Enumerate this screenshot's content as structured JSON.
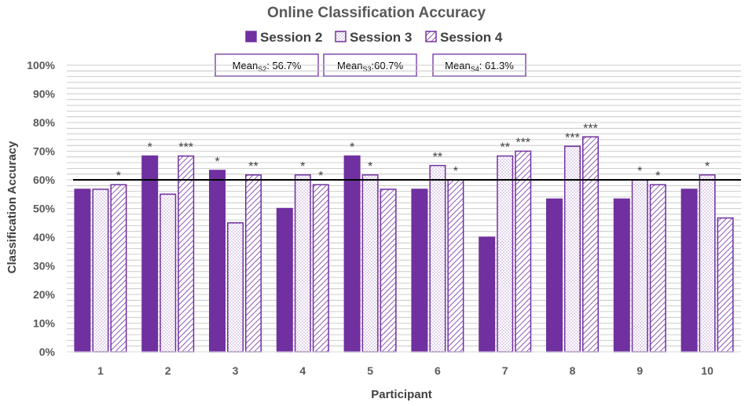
{
  "chart_data": {
    "type": "bar",
    "title": "Online Classification Accuracy",
    "xlabel": "Participant",
    "ylabel": "Classification Accuracy",
    "ylim": [
      0,
      100
    ],
    "ytick_labels": [
      "0%",
      "10%",
      "20%",
      "30%",
      "40%",
      "50%",
      "60%",
      "70%",
      "80%",
      "90%",
      "100%"
    ],
    "grid": true,
    "legend_position": "top-center",
    "categories": [
      "1",
      "2",
      "3",
      "4",
      "5",
      "6",
      "7",
      "8",
      "9",
      "10"
    ],
    "series": [
      {
        "name": "Session 2",
        "style": "solid",
        "values": [
          56.7,
          68.3,
          63.3,
          50.0,
          68.3,
          56.7,
          40.0,
          53.3,
          53.3,
          56.7
        ],
        "significance": [
          "",
          "*",
          "*",
          "",
          "*",
          "",
          "",
          "",
          "",
          ""
        ]
      },
      {
        "name": "Session 3",
        "style": "dotted",
        "values": [
          56.7,
          55.0,
          45.0,
          61.7,
          61.7,
          65.0,
          68.3,
          71.7,
          60.0,
          61.7
        ],
        "significance": [
          "",
          "",
          "",
          "*",
          "*",
          "**",
          "**",
          "***",
          "*",
          "*"
        ]
      },
      {
        "name": "Session 4",
        "style": "hatched",
        "values": [
          58.3,
          68.3,
          61.7,
          58.3,
          56.7,
          60.0,
          70.0,
          75.0,
          58.3,
          46.7
        ],
        "significance": [
          "*",
          "***",
          "**",
          "*",
          "",
          "*",
          "***",
          "***",
          "*",
          ""
        ]
      }
    ],
    "reference_line": 60,
    "means": [
      {
        "prefix": "Mean",
        "sub": "S2",
        "text": ": 56.7%"
      },
      {
        "prefix": "Mean",
        "sub": "S3",
        "text": ":60.7%"
      },
      {
        "prefix": "Mean",
        "sub": "S4",
        "text": ": 61.3%"
      }
    ]
  },
  "colors": {
    "bar": "#7030a0",
    "grid": "#bfbfbf",
    "reference_line": "#000000",
    "text": "#595959"
  }
}
